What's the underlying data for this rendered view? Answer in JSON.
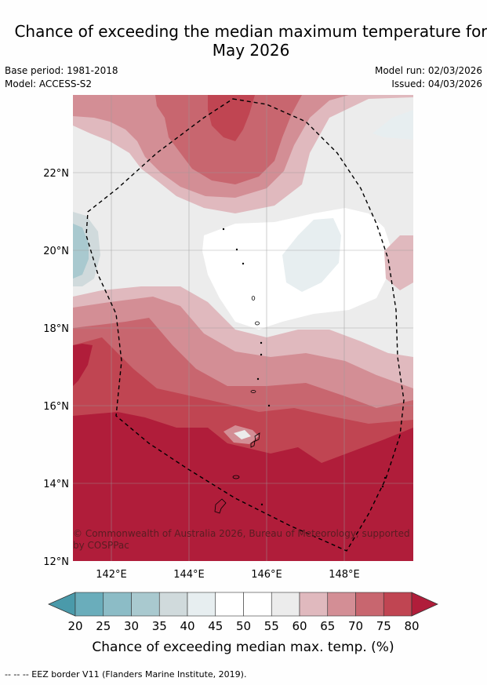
{
  "title_line1": "Chance of exceeding the median maximum temperature for",
  "title_line2": "May 2026",
  "base_period": "Base period: 1981-2018",
  "model": "Model: ACCESS-S2",
  "model_run": "Model run: 02/03/2026",
  "issued": "Issued: 04/03/2026",
  "copyright_line1": "© Commonwealth of Australia 2026, Bureau of Meteorology, supported",
  "copyright_line2": "by COSPPac",
  "lat_labels": [
    "22°N",
    "20°N",
    "18°N",
    "16°N",
    "14°N",
    "12°N"
  ],
  "lon_labels": [
    "142°E",
    "144°E",
    "146°E",
    "148°E"
  ],
  "colorbar": {
    "ticks": [
      "20",
      "25",
      "30",
      "35",
      "40",
      "45",
      "50",
      "55",
      "60",
      "65",
      "70",
      "75",
      "80"
    ],
    "colors": [
      "#4a9aaa",
      "#6aadbb",
      "#8cbcc6",
      "#a9c9cf",
      "#d0dadc",
      "#e7eef0",
      "#ffffff",
      "#ffffff",
      "#ececec",
      "#e0b9be",
      "#d38e95",
      "#c8666f",
      "#c04552",
      "#b01d3a"
    ],
    "label": "Chance of exceeding median max. temp. (%)"
  },
  "legend_footnote": "--  --  -- EEZ border V11 (Flanders Marine Institute, 2019)."
}
